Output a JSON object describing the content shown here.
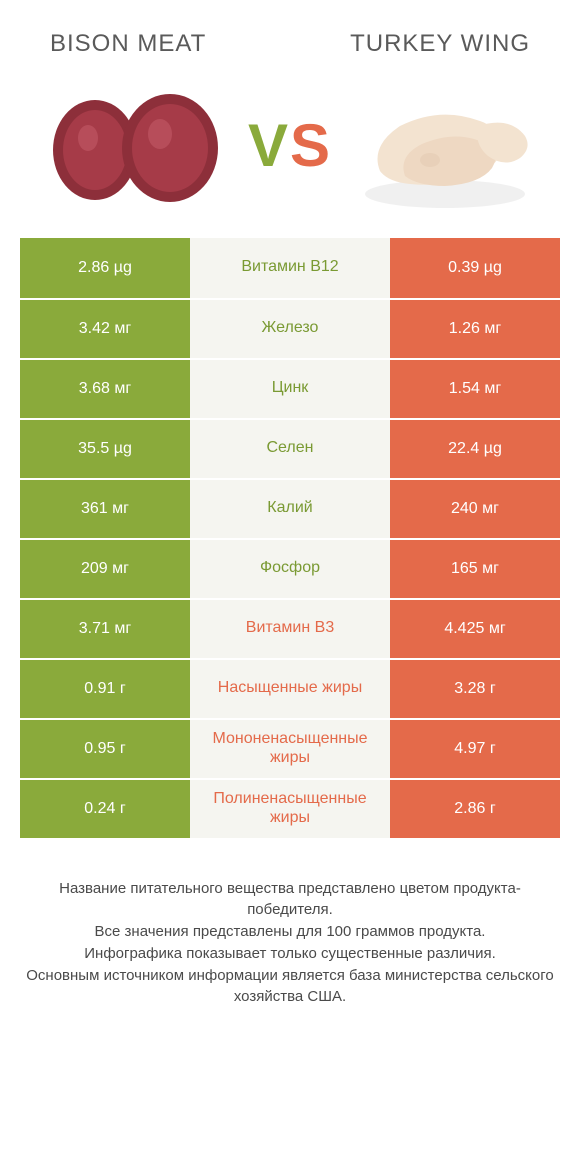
{
  "colors": {
    "green": "#8aaa3b",
    "orange": "#e46a4a",
    "mid_bg": "#f5f5f0",
    "text": "#4a4a4a",
    "page_bg": "#ffffff"
  },
  "header": {
    "left_title": "BISON MEAT",
    "right_title": "TURKEY WING",
    "vs_text": "VS"
  },
  "rows": [
    {
      "left": "2.86 µg",
      "label": "Витамин B12",
      "right": "0.39 µg",
      "winner": "left"
    },
    {
      "left": "3.42 мг",
      "label": "Железо",
      "right": "1.26 мг",
      "winner": "left"
    },
    {
      "left": "3.68 мг",
      "label": "Цинк",
      "right": "1.54 мг",
      "winner": "left"
    },
    {
      "left": "35.5 µg",
      "label": "Селен",
      "right": "22.4 µg",
      "winner": "left"
    },
    {
      "left": "361 мг",
      "label": "Калий",
      "right": "240 мг",
      "winner": "left"
    },
    {
      "left": "209 мг",
      "label": "Фосфор",
      "right": "165 мг",
      "winner": "left"
    },
    {
      "left": "3.71 мг",
      "label": "Витамин B3",
      "right": "4.425 мг",
      "winner": "right"
    },
    {
      "left": "0.91 г",
      "label": "Насыщенные жиры",
      "right": "3.28 г",
      "winner": "right"
    },
    {
      "left": "0.95 г",
      "label": "Мононенасыщенные жиры",
      "right": "4.97 г",
      "winner": "right"
    },
    {
      "left": "0.24 г",
      "label": "Полиненасыщенные жиры",
      "right": "2.86 г",
      "winner": "right"
    }
  ],
  "footer": {
    "line1": "Название питательного вещества представлено цветом продукта-победителя.",
    "line2": "Все значения представлены для 100 граммов продукта.",
    "line3": "Инфографика показывает только существенные различия.",
    "line4": "Основным источником информации является база министерства сельского хозяйства США."
  },
  "images": {
    "left_alt": "bison-meat",
    "right_alt": "turkey-wing"
  }
}
